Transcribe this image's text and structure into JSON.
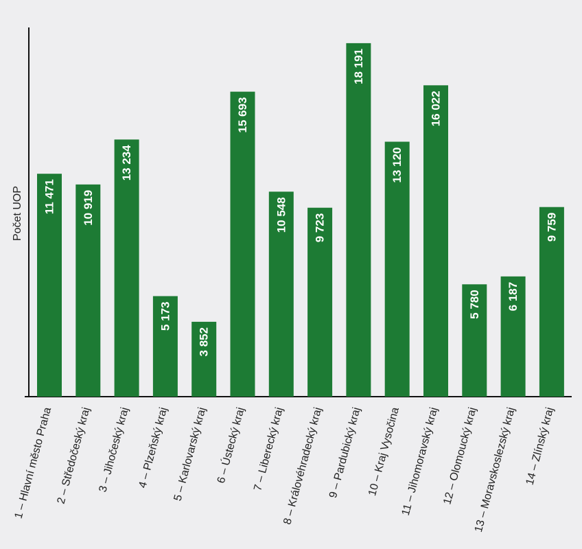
{
  "chart_data": {
    "type": "bar",
    "title": "",
    "xlabel": "",
    "ylabel": "Počet UOP",
    "ylim": [
      0,
      19000
    ],
    "grid": false,
    "legend": "none",
    "bar_color": "#1d7b34",
    "categories": [
      "1 – Hlavní město Praha",
      "2 – Středočeský kraj",
      "3 – Jihočeský kraj",
      "4 – Plzeňský kraj",
      "5 – Karlovarský kraj",
      "6 – Ústecký kraj",
      "7 – Liberecký kraj",
      "8 – Královéhradecký kraj",
      "9 – Pardubický kraj",
      "10 – Kraj Vysočina",
      "11 – Jihomoravský kraj",
      "12 – Olomoucký kraj",
      "13 – Moravskoslezský kraj",
      "14 – Zlínský kraj"
    ],
    "values": [
      11471,
      10919,
      13234,
      5173,
      3852,
      15693,
      10548,
      9723,
      18191,
      13120,
      16022,
      5780,
      6187,
      9759
    ],
    "value_labels": [
      "11 471",
      "10 919",
      "13 234",
      "5 173",
      "3 852",
      "15 693",
      "10 548",
      "9 723",
      "18 191",
      "13 120",
      "16 022",
      "5 780",
      "6 187",
      "9 759"
    ]
  }
}
